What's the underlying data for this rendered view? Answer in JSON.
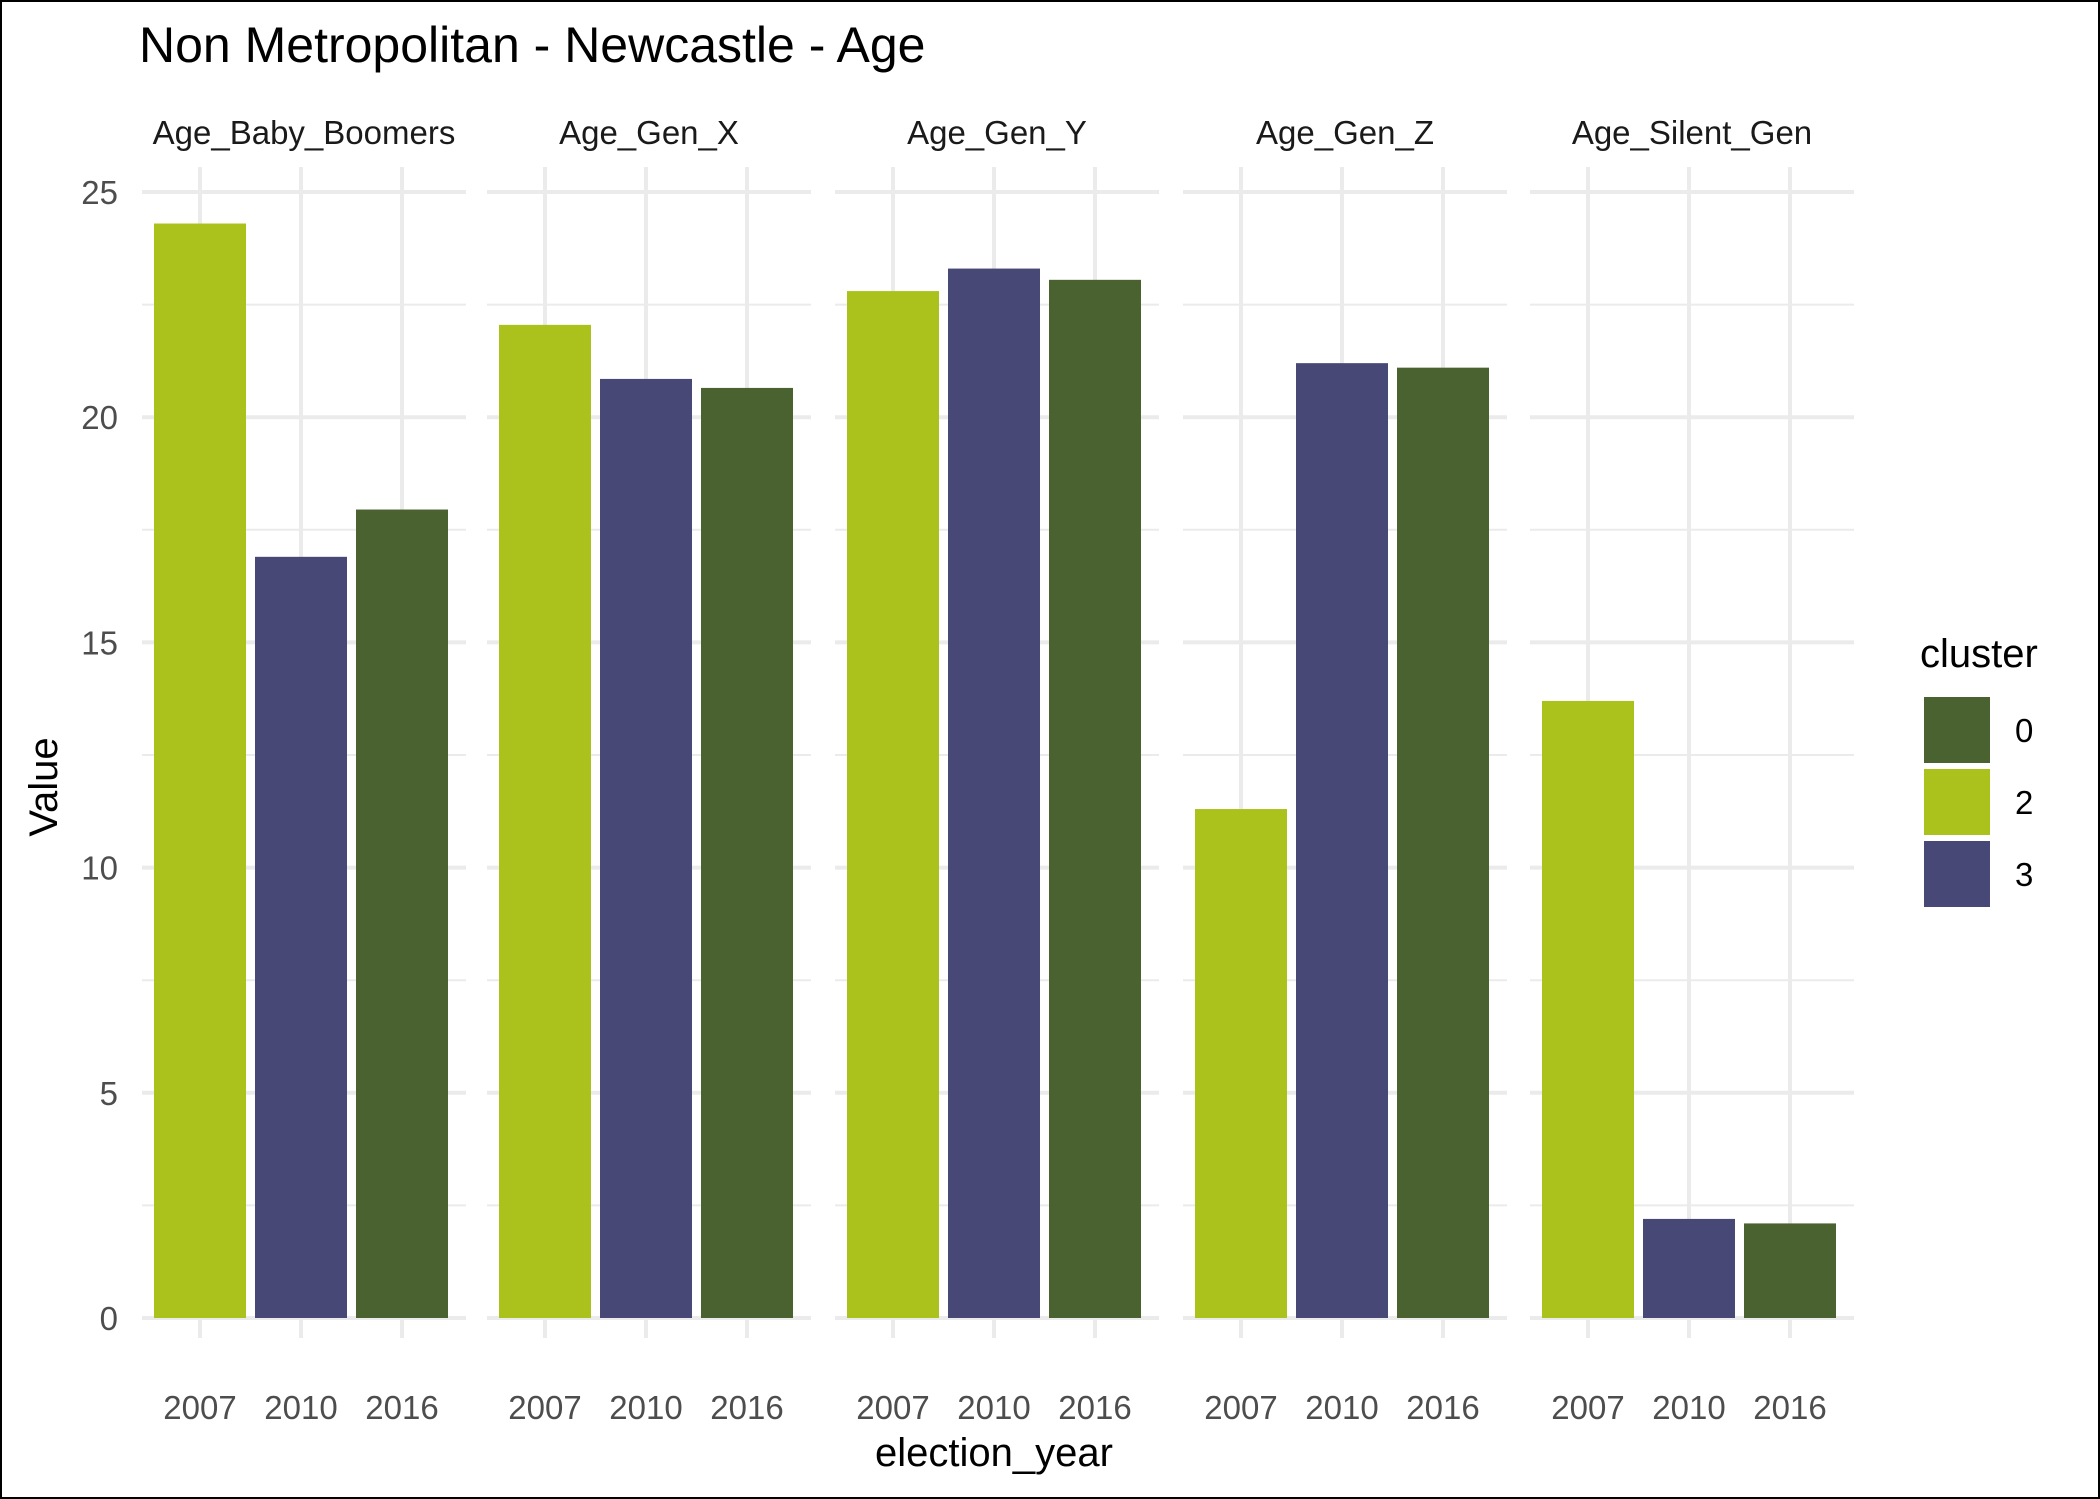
{
  "chart_data": {
    "type": "bar",
    "title": "Non Metropolitan - Newcastle - Age",
    "xlabel": "election_year",
    "ylabel": "Value",
    "ylim": [
      0,
      25
    ],
    "yticks": [
      0,
      5,
      10,
      15,
      20,
      25
    ],
    "grid": true,
    "categories": [
      "2007",
      "2010",
      "2016"
    ],
    "facets": [
      {
        "label": "Age_Baby_Boomers",
        "values": [
          24.3,
          16.9,
          17.95
        ],
        "clusters": [
          "2",
          "3",
          "0"
        ]
      },
      {
        "label": "Age_Gen_X",
        "values": [
          22.05,
          20.85,
          20.65
        ],
        "clusters": [
          "2",
          "3",
          "0"
        ]
      },
      {
        "label": "Age_Gen_Y",
        "values": [
          22.8,
          23.3,
          23.05
        ],
        "clusters": [
          "2",
          "3",
          "0"
        ]
      },
      {
        "label": "Age_Gen_Z",
        "values": [
          11.3,
          21.2,
          21.1
        ],
        "clusters": [
          "2",
          "3",
          "0"
        ]
      },
      {
        "label": "Age_Silent_Gen",
        "values": [
          13.7,
          2.2,
          2.1
        ],
        "clusters": [
          "2",
          "3",
          "0"
        ]
      }
    ],
    "legend": {
      "title": "cluster",
      "position": "right",
      "items": [
        {
          "label": "0",
          "color": "#4a6130"
        },
        {
          "label": "2",
          "color": "#aac21b"
        },
        {
          "label": "3",
          "color": "#484876"
        }
      ]
    }
  }
}
